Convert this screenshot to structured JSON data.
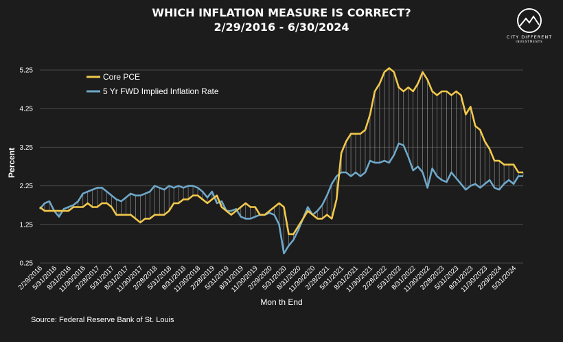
{
  "chart_data": {
    "type": "line",
    "title": "WHICH INFLATION MEASURE IS CORRECT?",
    "subtitle": "2/29/2016 - 6/30/2024",
    "xlabel": "Mon th End",
    "ylabel": "Percent",
    "ylim": [
      0.25,
      5.5
    ],
    "y_ticks": [
      "0.25",
      "1.25",
      "2.25",
      "3.25",
      "4.25",
      "5.25"
    ],
    "x_tick_labels": [
      "2/29/2016",
      "5/31/2016",
      "8/31/2016",
      "11/30/2016",
      "2/28/2017",
      "5/31/2017",
      "8/31/2017",
      "11/30/2017",
      "2/28/2018",
      "5/31/2018",
      "8/31/2018",
      "11/30/2018",
      "2/28/2019",
      "5/31/2019",
      "8/31/2019",
      "11/30/2019",
      "2/29/2020",
      "5/31/2020",
      "8/31/2020",
      "11/30/2020",
      "2/28/2021",
      "5/31/2021",
      "8/31/2021",
      "11/30/2021",
      "2/28/2022",
      "5/31/2022",
      "8/31/2022",
      "11/30/2022",
      "2/28/2023",
      "5/31/2023",
      "8/31/2023",
      "11/30/2023",
      "2/29/2024",
      "5/31/2024"
    ],
    "grid": "horizontal",
    "legend_position": "top-left",
    "series": [
      {
        "name": "Core PCE",
        "color": "#f2c94c",
        "values": [
          1.7,
          1.6,
          1.6,
          1.6,
          1.6,
          1.6,
          1.6,
          1.7,
          1.7,
          1.7,
          1.8,
          1.7,
          1.7,
          1.8,
          1.8,
          1.7,
          1.5,
          1.5,
          1.5,
          1.5,
          1.4,
          1.3,
          1.4,
          1.4,
          1.5,
          1.5,
          1.5,
          1.6,
          1.8,
          1.8,
          1.9,
          1.9,
          2.0,
          2.0,
          1.9,
          1.8,
          1.9,
          2.0,
          1.7,
          1.6,
          1.5,
          1.6,
          1.7,
          1.8,
          1.7,
          1.7,
          1.5,
          1.5,
          1.6,
          1.7,
          1.8,
          1.7,
          1.0,
          1.0,
          1.2,
          1.4,
          1.6,
          1.5,
          1.4,
          1.4,
          1.5,
          1.4,
          1.9,
          3.1,
          3.4,
          3.6,
          3.6,
          3.6,
          3.7,
          4.1,
          4.7,
          4.9,
          5.2,
          5.3,
          5.2,
          4.8,
          4.7,
          4.8,
          4.7,
          4.9,
          5.2,
          5.0,
          4.7,
          4.6,
          4.7,
          4.7,
          4.6,
          4.7,
          4.6,
          4.1,
          4.3,
          3.8,
          3.7,
          3.4,
          3.2,
          2.9,
          2.9,
          2.8,
          2.8,
          2.8,
          2.6,
          2.6
        ]
      },
      {
        "name": "5 Yr FWD Implied Inflation Rate",
        "color": "#6fa8c9",
        "values": [
          1.65,
          1.8,
          1.85,
          1.6,
          1.45,
          1.65,
          1.7,
          1.75,
          1.85,
          2.05,
          2.1,
          2.15,
          2.2,
          2.2,
          2.1,
          2.0,
          1.9,
          1.85,
          1.95,
          2.05,
          2.0,
          2.0,
          2.05,
          2.1,
          2.25,
          2.2,
          2.15,
          2.25,
          2.2,
          2.25,
          2.2,
          2.25,
          2.25,
          2.2,
          2.1,
          1.95,
          2.1,
          1.8,
          1.85,
          1.6,
          1.6,
          1.65,
          1.45,
          1.4,
          1.4,
          1.45,
          1.5,
          1.5,
          1.55,
          1.5,
          1.25,
          0.5,
          0.7,
          0.85,
          1.1,
          1.4,
          1.7,
          1.5,
          1.6,
          1.75,
          2.0,
          2.3,
          2.5,
          2.6,
          2.6,
          2.5,
          2.6,
          2.5,
          2.6,
          2.9,
          2.85,
          2.85,
          2.9,
          2.85,
          3.05,
          3.35,
          3.3,
          3.0,
          2.65,
          2.75,
          2.6,
          2.2,
          2.7,
          2.5,
          2.4,
          2.35,
          2.6,
          2.45,
          2.3,
          2.15,
          2.25,
          2.3,
          2.2,
          2.3,
          2.4,
          2.2,
          2.15,
          2.3,
          2.4,
          2.3,
          2.5,
          2.5
        ]
      }
    ]
  },
  "logo": {
    "name": "CITY DIFFERENT",
    "tagline": "INVESTMENTS"
  },
  "source": "Source: Federal Reserve Bank of St. Louis"
}
